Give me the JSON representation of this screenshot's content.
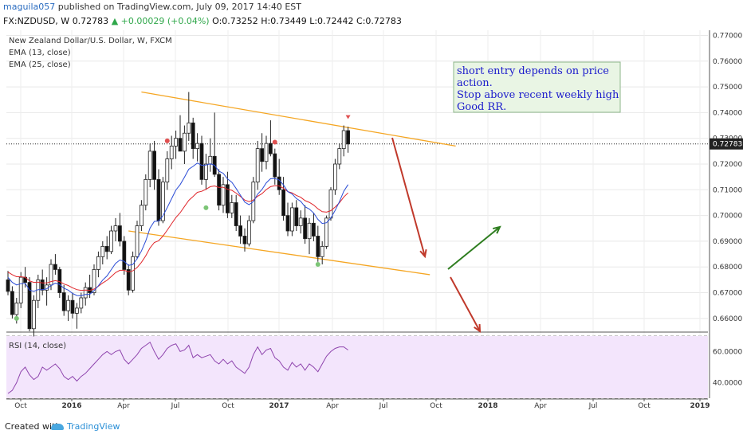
{
  "header": {
    "author": "maguila057",
    "published_text": "published on TradingView.com, July 09, 2017 14:40 EST",
    "symbol": "FX:NZDUSD, W",
    "last": "0.72783",
    "change": "+0.00029 (+0.04%)",
    "ohlc": "O:0.73252 H:0.73449 L:0.72442 C:0.72783"
  },
  "legend": {
    "instrument": "New Zealand Dollar/U.S. Dollar, W, FXCM",
    "ema13": "EMA (13, close)",
    "ema25": "EMA (25, close)"
  },
  "annotation": [
    "short entry depends on price",
    "action.",
    "Stop above recent weekly high",
    "Good RR."
  ],
  "rsi_label": "RSI (14, close)",
  "price_axis": [
    "0.77000",
    "0.76000",
    "0.75000",
    "0.74000",
    "0.73000",
    "0.72000",
    "0.71000",
    "0.70000",
    "0.69000",
    "0.68000",
    "0.67000",
    "0.66000"
  ],
  "last_price_tag": "0.72783",
  "rsi_axis": [
    "60.0000",
    "40.0000"
  ],
  "time_axis": [
    "Oct",
    "2016",
    "Apr",
    "Jul",
    "Oct",
    "2017",
    "Apr",
    "Jul",
    "Oct",
    "2018",
    "Apr",
    "Jul",
    "Oct",
    "2019"
  ],
  "footer": {
    "created": "Created with",
    "brand": "TradingView"
  },
  "colors": {
    "ema13": "#2a4bd6",
    "ema25": "#e0262b",
    "channel": "#f5a623",
    "down_arrow": "#c0392b",
    "up_arrow": "#2e7d1f",
    "rsi_line": "#8e44ad",
    "rsi_fill": "#f3e5fc"
  },
  "chart_data": {
    "type": "candlestick",
    "timeframe": "weekly",
    "price_range": [
      0.655,
      0.772
    ],
    "rsi_range": [
      30,
      72
    ],
    "candles_ohlc": [
      [
        0.675,
        0.6785,
        0.669,
        0.6705
      ],
      [
        0.6705,
        0.6725,
        0.66,
        0.6615
      ],
      [
        0.6615,
        0.668,
        0.658,
        0.666
      ],
      [
        0.666,
        0.678,
        0.664,
        0.676
      ],
      [
        0.676,
        0.68,
        0.672,
        0.674
      ],
      [
        0.674,
        0.676,
        0.655,
        0.656
      ],
      [
        0.656,
        0.669,
        0.653,
        0.667
      ],
      [
        0.667,
        0.677,
        0.664,
        0.675
      ],
      [
        0.675,
        0.679,
        0.669,
        0.671
      ],
      [
        0.671,
        0.676,
        0.665,
        0.673
      ],
      [
        0.673,
        0.683,
        0.671,
        0.681
      ],
      [
        0.681,
        0.685,
        0.677,
        0.679
      ],
      [
        0.679,
        0.68,
        0.668,
        0.67
      ],
      [
        0.67,
        0.673,
        0.661,
        0.663
      ],
      [
        0.663,
        0.669,
        0.659,
        0.667
      ],
      [
        0.667,
        0.67,
        0.66,
        0.662
      ],
      [
        0.662,
        0.666,
        0.656,
        0.664
      ],
      [
        0.664,
        0.67,
        0.662,
        0.668
      ],
      [
        0.668,
        0.674,
        0.665,
        0.672
      ],
      [
        0.672,
        0.677,
        0.668,
        0.67
      ],
      [
        0.67,
        0.681,
        0.669,
        0.679
      ],
      [
        0.679,
        0.686,
        0.676,
        0.684
      ],
      [
        0.684,
        0.69,
        0.681,
        0.688
      ],
      [
        0.688,
        0.692,
        0.683,
        0.686
      ],
      [
        0.686,
        0.696,
        0.685,
        0.694
      ],
      [
        0.694,
        0.699,
        0.69,
        0.696
      ],
      [
        0.696,
        0.701,
        0.688,
        0.69
      ],
      [
        0.69,
        0.692,
        0.677,
        0.679
      ],
      [
        0.679,
        0.681,
        0.669,
        0.671
      ],
      [
        0.671,
        0.686,
        0.67,
        0.684
      ],
      [
        0.684,
        0.698,
        0.683,
        0.696
      ],
      [
        0.696,
        0.706,
        0.694,
        0.704
      ],
      [
        0.704,
        0.716,
        0.702,
        0.714
      ],
      [
        0.714,
        0.728,
        0.711,
        0.725
      ],
      [
        0.725,
        0.729,
        0.71,
        0.714
      ],
      [
        0.714,
        0.718,
        0.696,
        0.698
      ],
      [
        0.698,
        0.715,
        0.697,
        0.713
      ],
      [
        0.713,
        0.725,
        0.71,
        0.722
      ],
      [
        0.722,
        0.731,
        0.718,
        0.727
      ],
      [
        0.727,
        0.733,
        0.722,
        0.73
      ],
      [
        0.73,
        0.739,
        0.726,
        0.725
      ],
      [
        0.725,
        0.735,
        0.72,
        0.732
      ],
      [
        0.732,
        0.748,
        0.729,
        0.736
      ],
      [
        0.736,
        0.738,
        0.722,
        0.726
      ],
      [
        0.726,
        0.732,
        0.721,
        0.728
      ],
      [
        0.728,
        0.731,
        0.712,
        0.714
      ],
      [
        0.714,
        0.724,
        0.71,
        0.72
      ],
      [
        0.72,
        0.73,
        0.717,
        0.723
      ],
      [
        0.723,
        0.74,
        0.715,
        0.716
      ],
      [
        0.716,
        0.718,
        0.702,
        0.704
      ],
      [
        0.704,
        0.715,
        0.701,
        0.712
      ],
      [
        0.712,
        0.717,
        0.699,
        0.701
      ],
      [
        0.701,
        0.708,
        0.699,
        0.705
      ],
      [
        0.705,
        0.708,
        0.694,
        0.696
      ],
      [
        0.696,
        0.7,
        0.689,
        0.692
      ],
      [
        0.692,
        0.695,
        0.686,
        0.689
      ],
      [
        0.689,
        0.7,
        0.688,
        0.698
      ],
      [
        0.698,
        0.715,
        0.697,
        0.713
      ],
      [
        0.713,
        0.729,
        0.71,
        0.726
      ],
      [
        0.726,
        0.732,
        0.717,
        0.721
      ],
      [
        0.721,
        0.731,
        0.718,
        0.728
      ],
      [
        0.728,
        0.737,
        0.723,
        0.724
      ],
      [
        0.724,
        0.726,
        0.712,
        0.715
      ],
      [
        0.715,
        0.722,
        0.708,
        0.71
      ],
      [
        0.71,
        0.715,
        0.698,
        0.7
      ],
      [
        0.7,
        0.705,
        0.692,
        0.694
      ],
      [
        0.694,
        0.705,
        0.692,
        0.703
      ],
      [
        0.703,
        0.706,
        0.694,
        0.696
      ],
      [
        0.696,
        0.702,
        0.693,
        0.699
      ],
      [
        0.699,
        0.704,
        0.689,
        0.691
      ],
      [
        0.691,
        0.699,
        0.685,
        0.697
      ],
      [
        0.697,
        0.701,
        0.69,
        0.692
      ],
      [
        0.692,
        0.696,
        0.682,
        0.684
      ],
      [
        0.684,
        0.69,
        0.681,
        0.688
      ],
      [
        0.688,
        0.7,
        0.687,
        0.699
      ],
      [
        0.699,
        0.711,
        0.698,
        0.71
      ],
      [
        0.71,
        0.722,
        0.708,
        0.72
      ],
      [
        0.72,
        0.728,
        0.718,
        0.726
      ],
      [
        0.726,
        0.735,
        0.723,
        0.733
      ],
      [
        0.733,
        0.7345,
        0.7244,
        0.7278
      ]
    ],
    "ema13": [
      0.676,
      0.674,
      0.673,
      0.6735,
      0.6737,
      0.671,
      0.6705,
      0.6712,
      0.6712,
      0.6715,
      0.6728,
      0.6737,
      0.6732,
      0.6717,
      0.671,
      0.6697,
      0.6689,
      0.6688,
      0.6693,
      0.6694,
      0.6708,
      0.6727,
      0.6749,
      0.6765,
      0.679,
      0.6814,
      0.6827,
      0.6822,
      0.6806,
      0.681,
      0.6832,
      0.6862,
      0.6901,
      0.6951,
      0.6977,
      0.6978,
      0.6999,
      0.7031,
      0.7065,
      0.7099,
      0.712,
      0.7149,
      0.718,
      0.7191,
      0.7204,
      0.7195,
      0.7196,
      0.7201,
      0.7195,
      0.7172,
      0.7164,
      0.7142,
      0.7129,
      0.7105,
      0.7079,
      0.7052,
      0.7042,
      0.7054,
      0.7083,
      0.7101,
      0.7127,
      0.7143,
      0.7144,
      0.7138,
      0.7119,
      0.7093,
      0.7084,
      0.7066,
      0.7055,
      0.7034,
      0.7025,
      0.701,
      0.6985,
      0.6969,
      0.6972,
      0.699,
      0.702,
      0.7054,
      0.7094,
      0.712
    ],
    "ema25": [
      0.678,
      0.677,
      0.6762,
      0.6762,
      0.676,
      0.6746,
      0.674,
      0.6741,
      0.6738,
      0.6738,
      0.6743,
      0.6747,
      0.6743,
      0.6734,
      0.6728,
      0.6719,
      0.6712,
      0.6709,
      0.671,
      0.6709,
      0.6714,
      0.6725,
      0.6738,
      0.6748,
      0.6763,
      0.6778,
      0.6787,
      0.6787,
      0.6781,
      0.6785,
      0.6798,
      0.6818,
      0.6843,
      0.6874,
      0.6895,
      0.6902,
      0.692,
      0.6943,
      0.6968,
      0.6992,
      0.7011,
      0.7035,
      0.7059,
      0.7074,
      0.709,
      0.7094,
      0.7102,
      0.7112,
      0.7115,
      0.7109,
      0.711,
      0.7102,
      0.7098,
      0.7087,
      0.7074,
      0.706,
      0.7054,
      0.706,
      0.7075,
      0.7085,
      0.7101,
      0.7112,
      0.7116,
      0.7115,
      0.7106,
      0.7093,
      0.7088,
      0.7078,
      0.7071,
      0.7058,
      0.7051,
      0.7041,
      0.7026,
      0.7015,
      0.7013,
      0.7019,
      0.7033,
      0.705,
      0.7072,
      0.7088
    ],
    "rsi": [
      33,
      35,
      40,
      47,
      50,
      45,
      42,
      44,
      50,
      48,
      50,
      52,
      49,
      44,
      42,
      44,
      41,
      44,
      46,
      49,
      52,
      55,
      58,
      60,
      58,
      60,
      61,
      55,
      52,
      55,
      58,
      62,
      64,
      66,
      60,
      55,
      58,
      62,
      64,
      65,
      60,
      61,
      64,
      56,
      58,
      56,
      57,
      58,
      54,
      52,
      55,
      52,
      54,
      50,
      48,
      46,
      50,
      58,
      63,
      58,
      61,
      62,
      56,
      54,
      50,
      48,
      53,
      50,
      52,
      48,
      52,
      50,
      47,
      52,
      57,
      60,
      62,
      63,
      63,
      61
    ],
    "markers": [
      {
        "index": 2,
        "price": 0.66,
        "color": "#7cc576"
      },
      {
        "index": 37,
        "price": 0.729,
        "color": "#e05050"
      },
      {
        "index": 46,
        "price": 0.703,
        "color": "#7cc576"
      },
      {
        "index": 62,
        "price": 0.7285,
        "color": "#e05050"
      },
      {
        "index": 72,
        "price": 0.681,
        "color": "#7cc576"
      }
    ],
    "channel_upper": [
      {
        "index": 31,
        "price": 0.748
      },
      {
        "index": 104,
        "price": 0.727
      }
    ],
    "channel_lower": [
      {
        "index": 28,
        "price": 0.694
      },
      {
        "index": 98,
        "price": 0.677
      }
    ]
  }
}
